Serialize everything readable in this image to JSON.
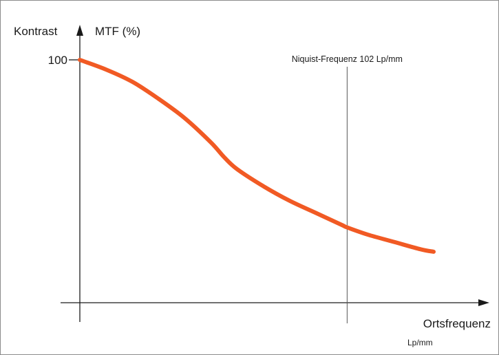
{
  "chart_data": {
    "type": "line",
    "ylabel_left": "Kontrast",
    "ylabel": "MTF (%)",
    "xlabel": "Ortsfrequenz",
    "xunit": "Lp/mm",
    "y_ticks": [
      {
        "value": 100,
        "label": "100"
      }
    ],
    "annotations": [
      {
        "text": "Niquist-Frequenz 102 Lp/mm",
        "x": 102
      }
    ],
    "xlim": [
      0,
      135
    ],
    "ylim": [
      0,
      100
    ],
    "grid": false,
    "series": [
      {
        "color": "#f15a24",
        "points": [
          [
            0,
            100
          ],
          [
            10,
            96
          ],
          [
            20,
            91
          ],
          [
            30,
            84
          ],
          [
            40,
            76
          ],
          [
            50,
            66
          ],
          [
            55,
            60
          ],
          [
            60,
            55
          ],
          [
            70,
            48
          ],
          [
            80,
            42
          ],
          [
            90,
            37
          ],
          [
            100,
            32
          ],
          [
            102,
            31
          ],
          [
            110,
            28
          ],
          [
            120,
            25
          ],
          [
            130,
            22
          ],
          [
            135,
            21
          ]
        ]
      }
    ],
    "colors": {
      "curve": "#f15a24",
      "axis": "#1a1a1a",
      "marker_line": "#555555",
      "border": "#8a8a8a"
    }
  }
}
